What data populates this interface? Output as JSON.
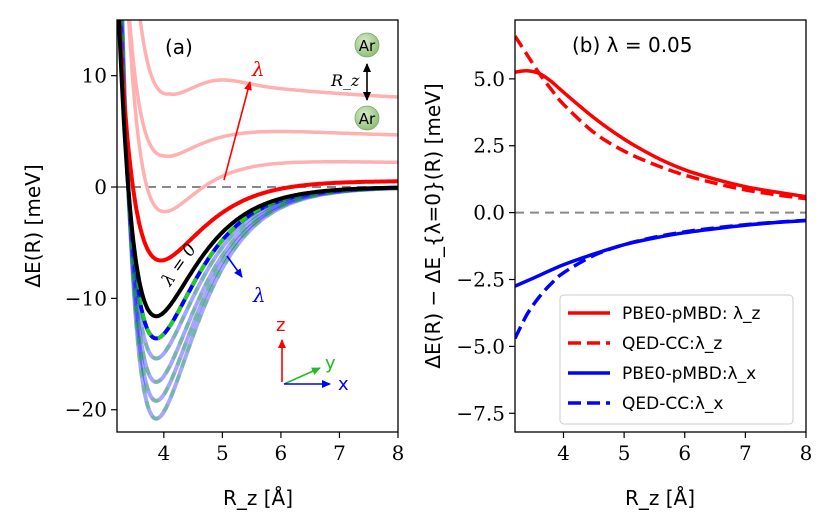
{
  "chart_data": [
    {
      "type": "line",
      "panel_label": "(a)",
      "xlabel": "R_z [Å]",
      "ylabel": "ΔE(R) [meV]",
      "xlim": [
        3.2,
        8.0
      ],
      "ylim": [
        -22,
        15
      ],
      "xticks": [
        "4",
        "5",
        "6",
        "7",
        "8"
      ],
      "yticks": [
        "10",
        "0",
        "−10",
        "−20"
      ],
      "reference_line": 0,
      "curves_lambda_z": [
        {
          "name": "λ=0",
          "color": "#000000",
          "De": -11.6,
          "Re": 3.87
        },
        {
          "name": "λ_z 1",
          "color": "#ff0000",
          "De": -6.6,
          "Re": 3.95
        },
        {
          "name": "λ_z 2",
          "color": "#ffb0b0",
          "De": -2.2,
          "Re": 4.0
        },
        {
          "name": "λ_z 3",
          "color": "#ffb0b0",
          "De": 2.6,
          "Re": 4.0
        },
        {
          "name": "λ_z 4",
          "color": "#ffb0b0",
          "De": 7.8,
          "Re": 4.1
        }
      ],
      "curves_lambda_x": [
        {
          "name": "λ_x 1",
          "De": -13.6,
          "Re": 3.87
        },
        {
          "name": "λ_x 2",
          "De": -15.4,
          "Re": 3.87
        },
        {
          "name": "λ_x 3",
          "De": -17.5,
          "Re": 3.87
        },
        {
          "name": "λ_x 4",
          "De": -19.2,
          "Re": 3.87
        },
        {
          "name": "λ_x 5",
          "De": -20.8,
          "Re": 3.87
        }
      ],
      "annotations": {
        "lambda_up": "λ",
        "lambda_down": "λ",
        "lambda_zero": "λ = 0",
        "atom_top": "Ar",
        "atom_bottom": "Ar",
        "rz_label": "R_z",
        "axis_z": "z",
        "axis_y": "y",
        "axis_x": "x"
      }
    },
    {
      "type": "line",
      "panel_label": "(b)",
      "title": "(b) λ = 0.05",
      "xlabel": "R_z [Å]",
      "ylabel": "ΔE(R) − ΔE_{λ=0}(R) [meV]",
      "xlim": [
        3.2,
        8.0
      ],
      "ylim": [
        -8.2,
        7.2
      ],
      "xticks": [
        "4",
        "5",
        "6",
        "7",
        "8"
      ],
      "yticks": [
        "5.0",
        "2.5",
        "0.0",
        "−2.5",
        "−5.0",
        "−7.5"
      ],
      "reference_line": 0,
      "series": [
        {
          "name": "PBE0-pMBD: λ_z",
          "style": "solid",
          "color": "#ff0000",
          "x": [
            3.2,
            3.4,
            3.6,
            3.8,
            4.0,
            4.5,
            5.0,
            5.5,
            6.0,
            6.5,
            7.0,
            7.5,
            8.0
          ],
          "y": [
            5.25,
            5.3,
            5.2,
            4.9,
            4.5,
            3.55,
            2.75,
            2.1,
            1.6,
            1.25,
            0.97,
            0.77,
            0.6
          ]
        },
        {
          "name": "QED-CC:λ_z",
          "style": "dashed",
          "color": "#ff0000",
          "x": [
            3.2,
            3.4,
            3.6,
            3.8,
            4.0,
            4.5,
            5.0,
            5.5,
            6.0,
            6.5,
            7.0,
            7.5,
            8.0
          ],
          "y": [
            6.6,
            5.9,
            5.2,
            4.6,
            4.05,
            3.0,
            2.3,
            1.8,
            1.4,
            1.1,
            0.85,
            0.67,
            0.52
          ]
        },
        {
          "name": "PBE0-pMBD:λ_x",
          "style": "solid",
          "color": "#0000ff",
          "x": [
            3.2,
            3.5,
            4.0,
            4.5,
            5.0,
            5.5,
            6.0,
            6.5,
            7.0,
            7.5,
            8.0
          ],
          "y": [
            -2.75,
            -2.45,
            -1.95,
            -1.55,
            -1.2,
            -0.95,
            -0.75,
            -0.6,
            -0.47,
            -0.37,
            -0.3
          ]
        },
        {
          "name": "QED-CC:λ_x",
          "style": "dashed",
          "color": "#0000ff",
          "x": [
            3.2,
            3.4,
            3.6,
            3.8,
            4.0,
            4.5,
            5.0,
            5.5,
            6.0,
            6.5,
            7.0,
            7.5,
            8.0
          ],
          "y": [
            -4.7,
            -3.8,
            -3.15,
            -2.65,
            -2.25,
            -1.6,
            -1.2,
            -0.92,
            -0.72,
            -0.57,
            -0.45,
            -0.36,
            -0.29
          ]
        }
      ]
    }
  ]
}
